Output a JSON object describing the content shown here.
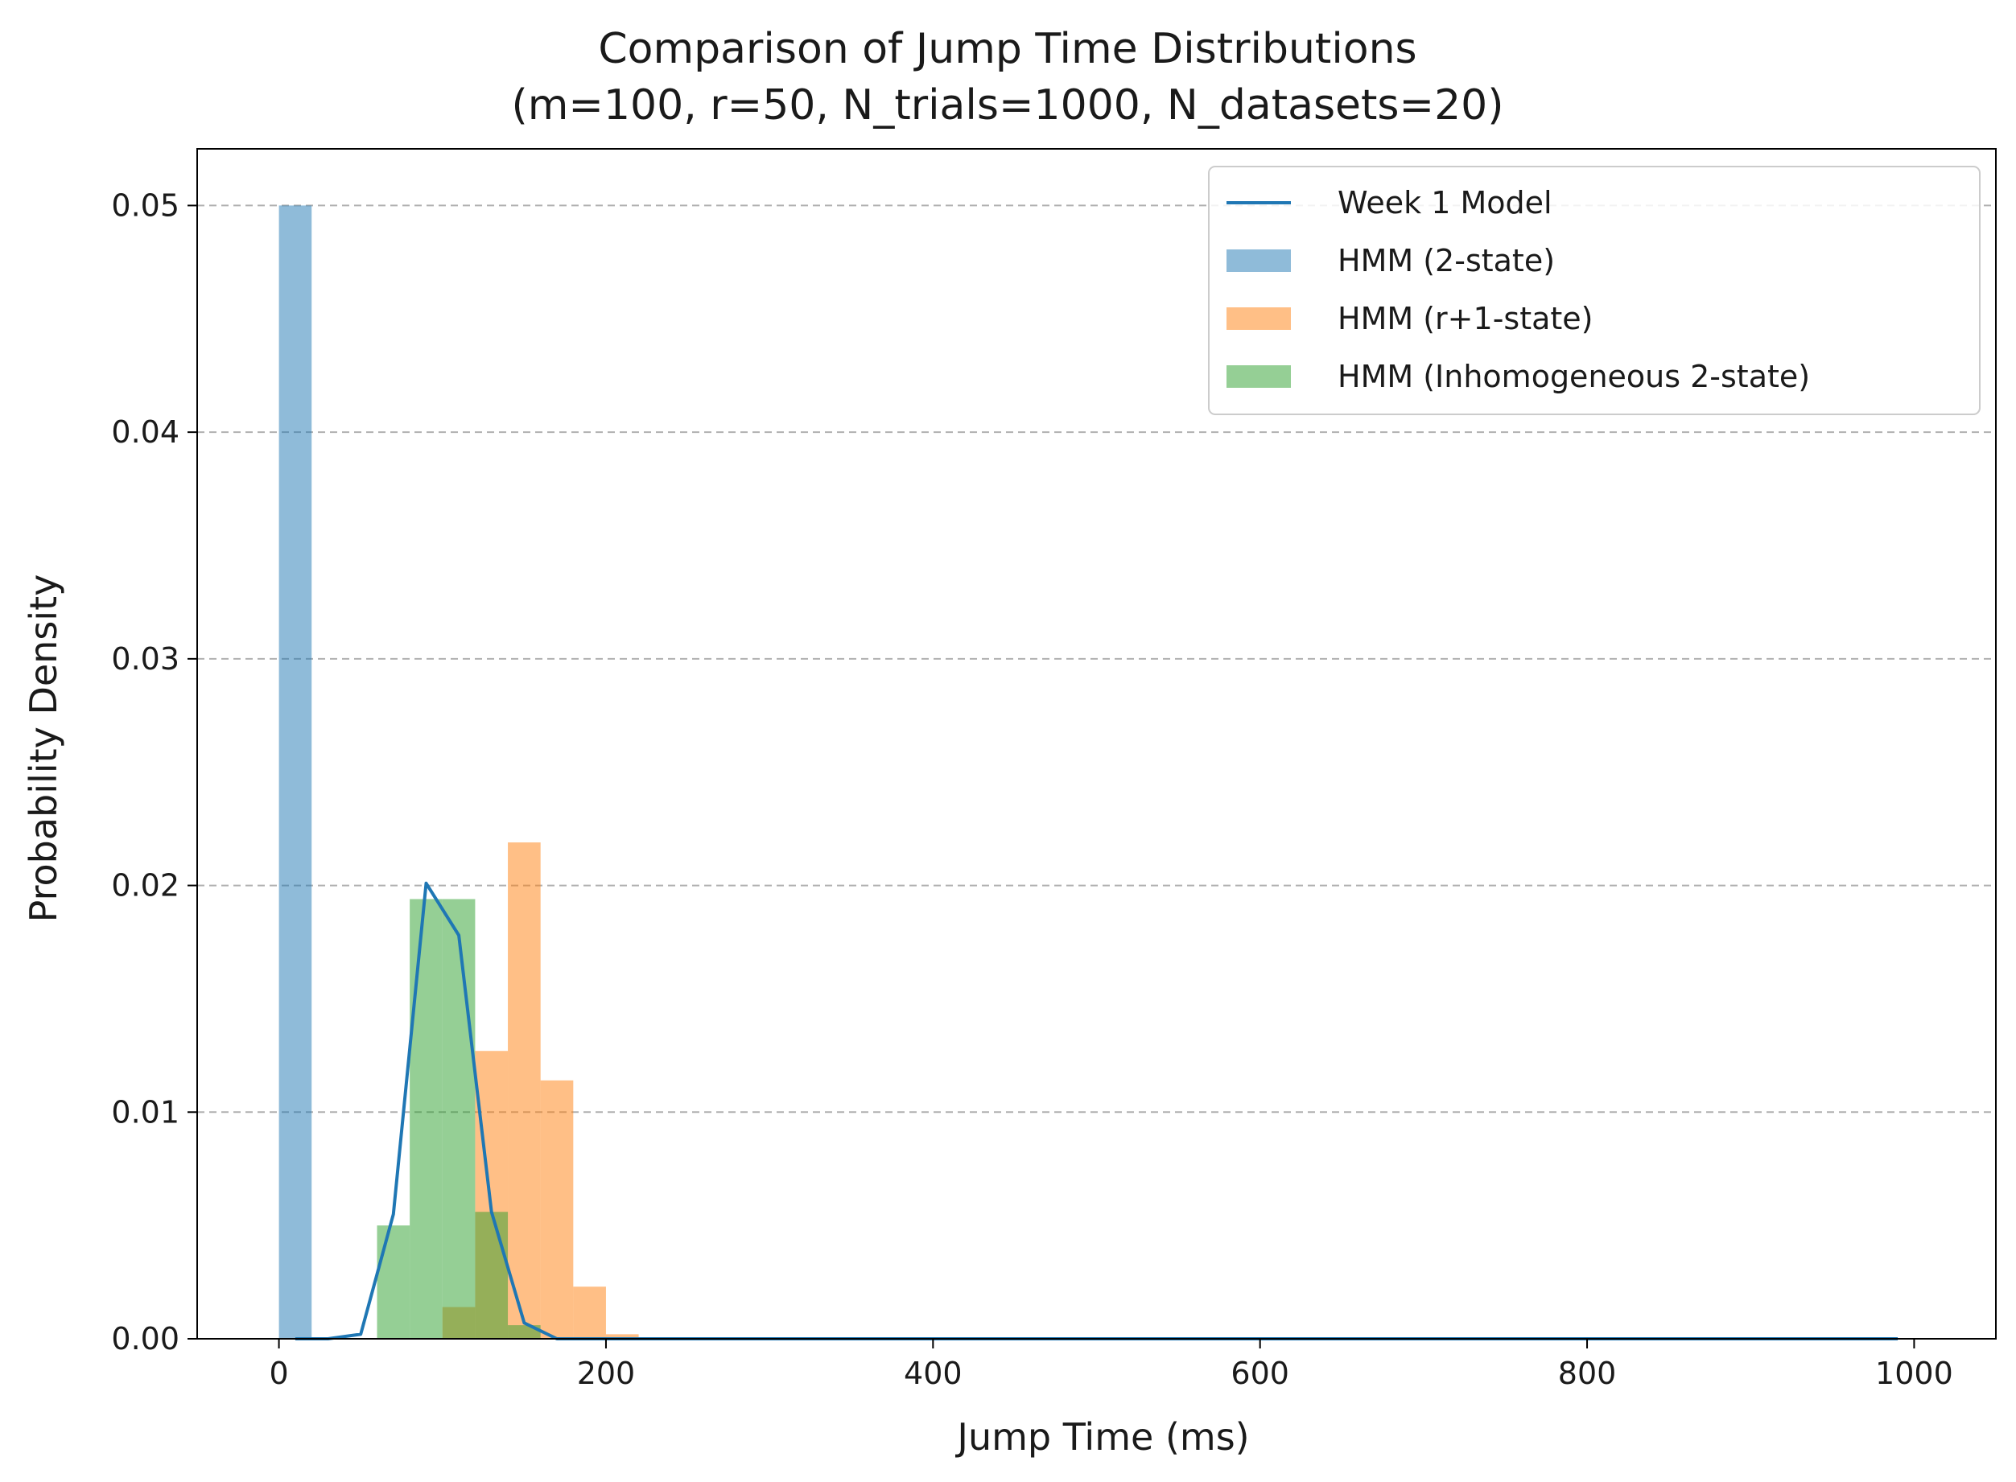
{
  "chart_data": {
    "type": "bar",
    "title": "Comparison of Jump Time Distributions",
    "subtitle": "(m=100, r=50, N_trials=1000, N_datasets=20)",
    "xlabel": "Jump Time (ms)",
    "ylabel": "Probability Density",
    "xlim": [
      -50,
      1050
    ],
    "ylim": [
      0,
      0.0525
    ],
    "xticks": [
      0,
      200,
      400,
      600,
      800,
      1000
    ],
    "yticks": [
      0.0,
      0.01,
      0.02,
      0.03,
      0.04,
      0.05
    ],
    "xtick_labels": [
      "0",
      "200",
      "400",
      "600",
      "800",
      "1000"
    ],
    "ytick_labels": [
      "0.00",
      "0.01",
      "0.02",
      "0.03",
      "0.04",
      "0.05"
    ],
    "grid": "y-dashed",
    "legend_position": "top-right",
    "bin_width": 20,
    "series": [
      {
        "name": "HMM (2-state)",
        "kind": "hist",
        "color": "#1f77b4",
        "alpha": 0.5,
        "bins": [
          [
            0,
            0.05
          ]
        ]
      },
      {
        "name": "HMM (r+1-state)",
        "kind": "hist",
        "color": "#ff7f0e",
        "alpha": 0.5,
        "bins": [
          [
            100,
            0.0014
          ],
          [
            120,
            0.0127
          ],
          [
            140,
            0.0219
          ],
          [
            160,
            0.0114
          ],
          [
            180,
            0.0023
          ],
          [
            200,
            0.0002
          ]
        ]
      },
      {
        "name": "HMM (Inhomogeneous 2-state)",
        "kind": "hist",
        "color": "#2ca02c",
        "alpha": 0.5,
        "bins": [
          [
            60,
            0.005
          ],
          [
            80,
            0.0194
          ],
          [
            100,
            0.0194
          ],
          [
            120,
            0.0056
          ],
          [
            140,
            0.0006
          ]
        ]
      },
      {
        "name": "Week 1 Model",
        "kind": "line",
        "color": "#1f77b4",
        "points": [
          [
            10,
            0
          ],
          [
            30,
            0
          ],
          [
            50,
            0.0002
          ],
          [
            70,
            0.0055
          ],
          [
            90,
            0.0201
          ],
          [
            110,
            0.0178
          ],
          [
            130,
            0.0056
          ],
          [
            150,
            0.0007
          ],
          [
            170,
            0
          ],
          [
            190,
            0
          ],
          [
            400,
            0
          ],
          [
            600,
            0
          ],
          [
            800,
            0
          ],
          [
            990,
            0
          ]
        ]
      }
    ],
    "legend_order": [
      "Week 1 Model",
      "HMM (2-state)",
      "HMM (r+1-state)",
      "HMM (Inhomogeneous 2-state)"
    ]
  }
}
